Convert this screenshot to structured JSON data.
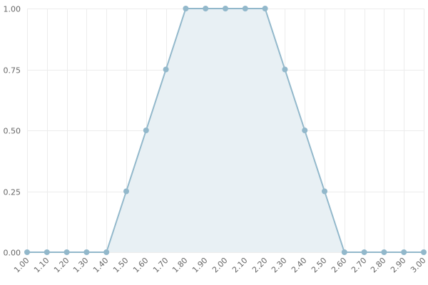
{
  "chart_data": {
    "type": "area",
    "x": [
      "1.00",
      "1.10",
      "1.20",
      "1.30",
      "1.40",
      "1.50",
      "1.60",
      "1.70",
      "1.80",
      "1.90",
      "2.00",
      "2.10",
      "2.20",
      "2.30",
      "2.40",
      "2.50",
      "2.60",
      "2.70",
      "2.80",
      "2.90",
      "3.00"
    ],
    "series": [
      {
        "values": [
          0,
          0,
          0,
          0,
          0,
          0.25,
          0.5,
          0.75,
          1,
          1,
          1,
          1,
          1,
          0.75,
          0.5,
          0.25,
          0,
          0,
          0,
          0,
          0
        ]
      }
    ],
    "y_ticks": [
      "0.00",
      "0.25",
      "0.50",
      "0.75",
      "1.00"
    ],
    "ylim": [
      0,
      1
    ],
    "grid": true,
    "legend": "none",
    "colors": {
      "line": "#92b8cb",
      "fill": "#e8f0f4",
      "grid": "#ececec",
      "text": "#666666"
    }
  }
}
